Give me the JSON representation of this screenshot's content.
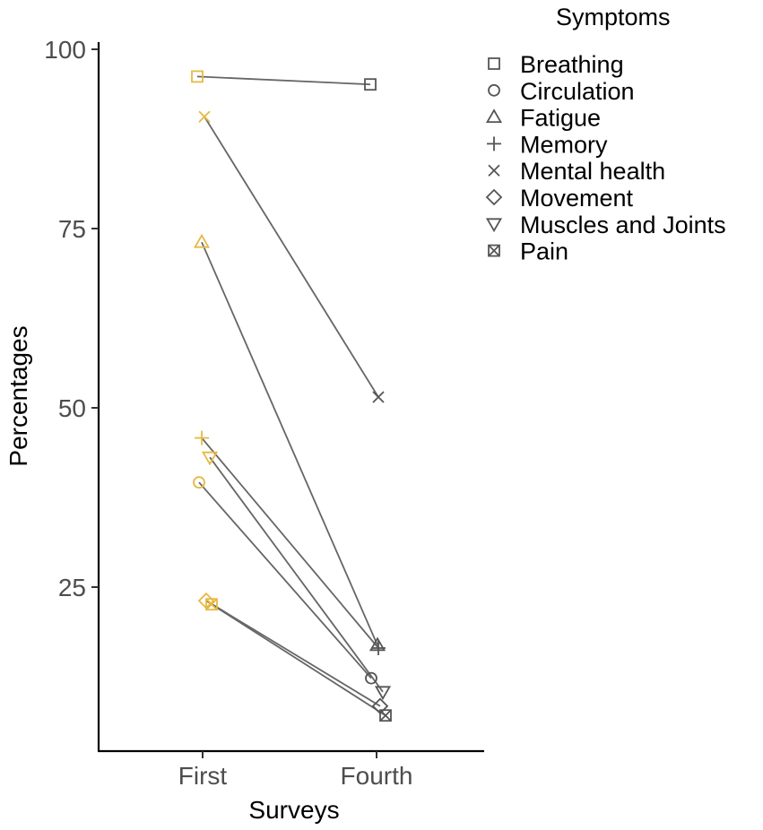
{
  "chart_data": {
    "type": "line",
    "title": "",
    "xlabel": "Surveys",
    "ylabel": "Percentages",
    "categories": [
      "First",
      "Fourth"
    ],
    "yticks": [
      "25",
      "50",
      "75",
      "100"
    ],
    "ylim": [
      0,
      100
    ],
    "grid": false,
    "legend": {
      "title": "Symptoms",
      "placement": "right"
    },
    "colors": {
      "first": "#E6B943",
      "fourth": "#555555",
      "line": "#666666"
    },
    "series": [
      {
        "name": "Breathing",
        "shape": "square",
        "values": [
          96.2,
          95.1
        ]
      },
      {
        "name": "Circulation",
        "shape": "circle",
        "values": [
          39.6,
          12.3
        ]
      },
      {
        "name": "Fatigue",
        "shape": "triangle-up",
        "values": [
          73.1,
          16.9
        ]
      },
      {
        "name": "Memory",
        "shape": "plus",
        "values": [
          45.8,
          16.5
        ]
      },
      {
        "name": "Mental health",
        "shape": "cross",
        "values": [
          90.6,
          51.5
        ]
      },
      {
        "name": "Movement",
        "shape": "diamond",
        "values": [
          23.1,
          8.4
        ]
      },
      {
        "name": "Muscles and Joints",
        "shape": "triangle-down",
        "values": [
          43.1,
          10.4
        ]
      },
      {
        "name": "Pain",
        "shape": "square-cross",
        "values": [
          22.6,
          7.1
        ]
      }
    ]
  }
}
